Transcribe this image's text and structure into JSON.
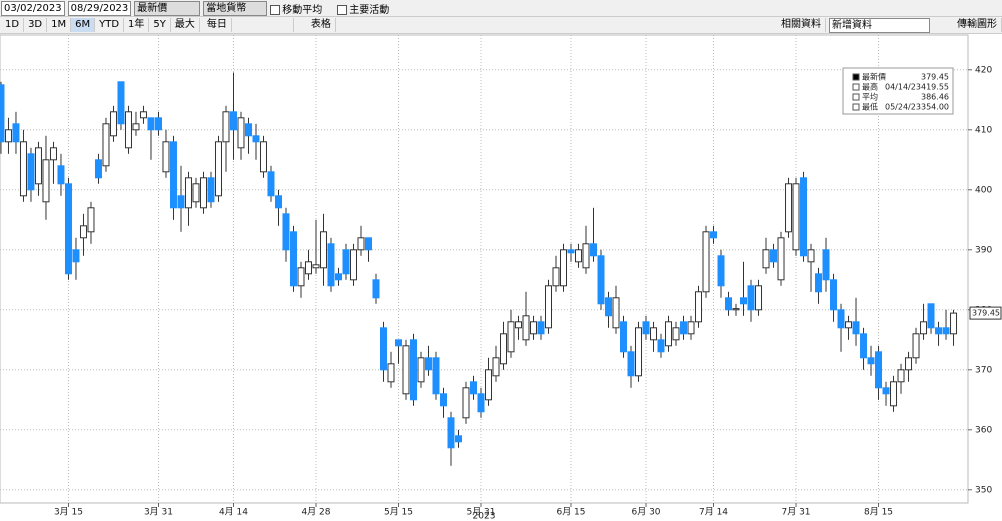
{
  "toolbar": {
    "start_date": "03/02/2023",
    "end_date": "08/29/2023",
    "price_field": "最新價",
    "currency": "當地貨幣",
    "moving_average": "移動平均",
    "events": "主要活動",
    "periods": [
      "1D",
      "3D",
      "1M",
      "6M",
      "YTD",
      "1年",
      "5Y",
      "最大"
    ],
    "selected_period": "6M",
    "frequency": "每日",
    "table": "表格",
    "related": "相關資料",
    "add_data": "新增資料",
    "transfer": "傳輸圖形"
  },
  "chart_data": {
    "type": "candlestick",
    "up_color": "#ffffff",
    "down_color": "#1e8fff",
    "open": [
      417.5,
      408,
      411,
      399,
      406,
      401,
      398,
      405,
      404,
      401,
      390,
      392,
      393,
      405,
      404,
      409,
      418,
      407,
      410,
      412,
      412,
      412,
      403,
      408,
      399,
      397,
      398,
      397,
      402,
      399,
      408,
      413,
      407,
      411,
      409,
      403,
      403,
      399,
      396,
      393,
      384,
      386,
      387,
      387,
      391,
      386,
      390,
      385,
      390,
      392,
      385,
      377,
      368,
      375,
      366,
      375,
      368,
      372,
      372,
      366,
      362,
      359,
      362,
      368,
      366,
      365,
      369,
      371,
      373,
      377,
      375,
      376,
      378,
      377,
      384,
      384,
      390,
      388,
      387,
      391,
      389,
      382,
      377,
      378,
      373,
      369,
      378,
      375,
      375,
      374,
      375,
      378,
      376,
      378,
      383,
      393,
      389,
      382,
      380,
      382,
      384,
      380,
      387,
      390,
      385,
      393,
      390,
      402,
      388,
      386,
      390,
      385,
      380,
      377,
      378,
      376,
      372,
      373,
      367,
      364,
      368,
      370,
      372,
      376,
      381,
      377,
      377,
      376
    ],
    "high": [
      418,
      412,
      413,
      410,
      407,
      408,
      409,
      408,
      406,
      402,
      392,
      396,
      398,
      406,
      412,
      414,
      418,
      414,
      413,
      414,
      412,
      413,
      410,
      409,
      404,
      403,
      402,
      403,
      403,
      409,
      414,
      419.55,
      413,
      412,
      411,
      409,
      404,
      400,
      397,
      394,
      388,
      390,
      395,
      396,
      392,
      387,
      391,
      391,
      394,
      392,
      386,
      378,
      373,
      375,
      375,
      376,
      373,
      374,
      373,
      367,
      363,
      360,
      368,
      369,
      367,
      372,
      374,
      378,
      380,
      379,
      383,
      379,
      379,
      385,
      389,
      391,
      391,
      391,
      394,
      397,
      390,
      383,
      384,
      379,
      374,
      378,
      379,
      378,
      376,
      379,
      378,
      379,
      379,
      384,
      394,
      394,
      390,
      383,
      381,
      388,
      385,
      385,
      392,
      391,
      393,
      402,
      402,
      403,
      391,
      387,
      392,
      386,
      381,
      379,
      382,
      377,
      374,
      374,
      368,
      369,
      371,
      373,
      377,
      381,
      381,
      378,
      380,
      380
    ],
    "low": [
      406,
      406,
      406,
      398,
      398,
      399,
      395,
      401,
      399,
      385,
      385,
      389,
      391,
      401,
      403,
      408,
      410,
      406,
      409,
      411,
      405,
      409,
      402,
      395,
      393,
      394,
      397,
      396,
      397,
      398,
      403,
      405,
      405,
      406,
      405,
      402,
      398,
      394,
      388,
      383,
      382,
      385,
      386,
      384,
      383,
      384,
      385,
      384,
      389,
      388,
      381,
      368,
      367,
      371,
      365,
      364,
      367,
      369,
      365,
      362,
      354,
      357,
      361,
      365,
      362,
      364,
      368,
      370,
      372,
      375,
      374,
      375,
      375,
      376,
      383,
      383,
      388,
      387,
      386,
      388,
      380,
      377,
      376,
      372,
      367,
      368,
      375,
      373,
      372,
      373,
      374,
      375,
      375,
      377,
      382,
      391,
      382,
      379,
      379,
      379,
      378,
      379,
      386,
      387,
      384,
      392,
      389,
      388,
      383,
      381,
      383,
      378,
      373,
      375,
      374,
      370,
      369,
      365,
      364,
      363,
      366,
      368,
      371,
      375,
      376,
      374,
      375,
      374
    ],
    "close": [
      408,
      410,
      408,
      408,
      400,
      407,
      405,
      407,
      401,
      386,
      388,
      394,
      397,
      402,
      411,
      413,
      411,
      413,
      411,
      413,
      410,
      410,
      408,
      397,
      397,
      402,
      401,
      402,
      398,
      408,
      413,
      410,
      412,
      409,
      408,
      408,
      399,
      397,
      390,
      384,
      387,
      388,
      387.5,
      393,
      384,
      385,
      386,
      390,
      392,
      390,
      382,
      370,
      371,
      374,
      374,
      365,
      372,
      370,
      366,
      364,
      357,
      358,
      367,
      366,
      363,
      370,
      372,
      376,
      378,
      378,
      379,
      378,
      376,
      384,
      387,
      390,
      389.5,
      390,
      391,
      389,
      381,
      379,
      382,
      373,
      369,
      377,
      376,
      377,
      373,
      378,
      377,
      376,
      378,
      383,
      393,
      392,
      384,
      380,
      380.2,
      381,
      380,
      384,
      390,
      388,
      392,
      401,
      401,
      389,
      390,
      383,
      385,
      380,
      377,
      378,
      376,
      372,
      371,
      367,
      366,
      368,
      370,
      372,
      376,
      378,
      377,
      376,
      376,
      379.45
    ],
    "xlim": [
      -0.13,
      128.93
    ],
    "xticks": [
      {
        "value": 9,
        "label": "3月 15"
      },
      {
        "value": 21,
        "label": "3月 31"
      },
      {
        "value": 31,
        "label": "4月 14"
      },
      {
        "value": 42,
        "label": "4月 28"
      },
      {
        "value": 53,
        "label": "5月 15"
      },
      {
        "value": 64,
        "label": "5月 31"
      },
      {
        "value": 76,
        "label": "6月 15"
      },
      {
        "value": 86,
        "label": "6月 30"
      },
      {
        "value": 95,
        "label": "7月 14"
      },
      {
        "value": 106,
        "label": "7月 31"
      },
      {
        "value": 117,
        "label": "8月 15"
      }
    ],
    "x_year_label": "2023",
    "ylim": [
      347.8,
      425.8
    ],
    "yticks": [
      350,
      360,
      370,
      380,
      390,
      400,
      410,
      420
    ],
    "grid": true,
    "legend_items": [
      {
        "name": "最新價",
        "value": 379.45
      },
      {
        "name": "最高",
        "date": "04/14/23",
        "value": 419.55
      },
      {
        "name": "平均",
        "value": 386.46
      },
      {
        "name": "最低",
        "date": "05/24/23",
        "value": {
          "value": 354,
          "label": "354.00"
        }
      }
    ]
  }
}
